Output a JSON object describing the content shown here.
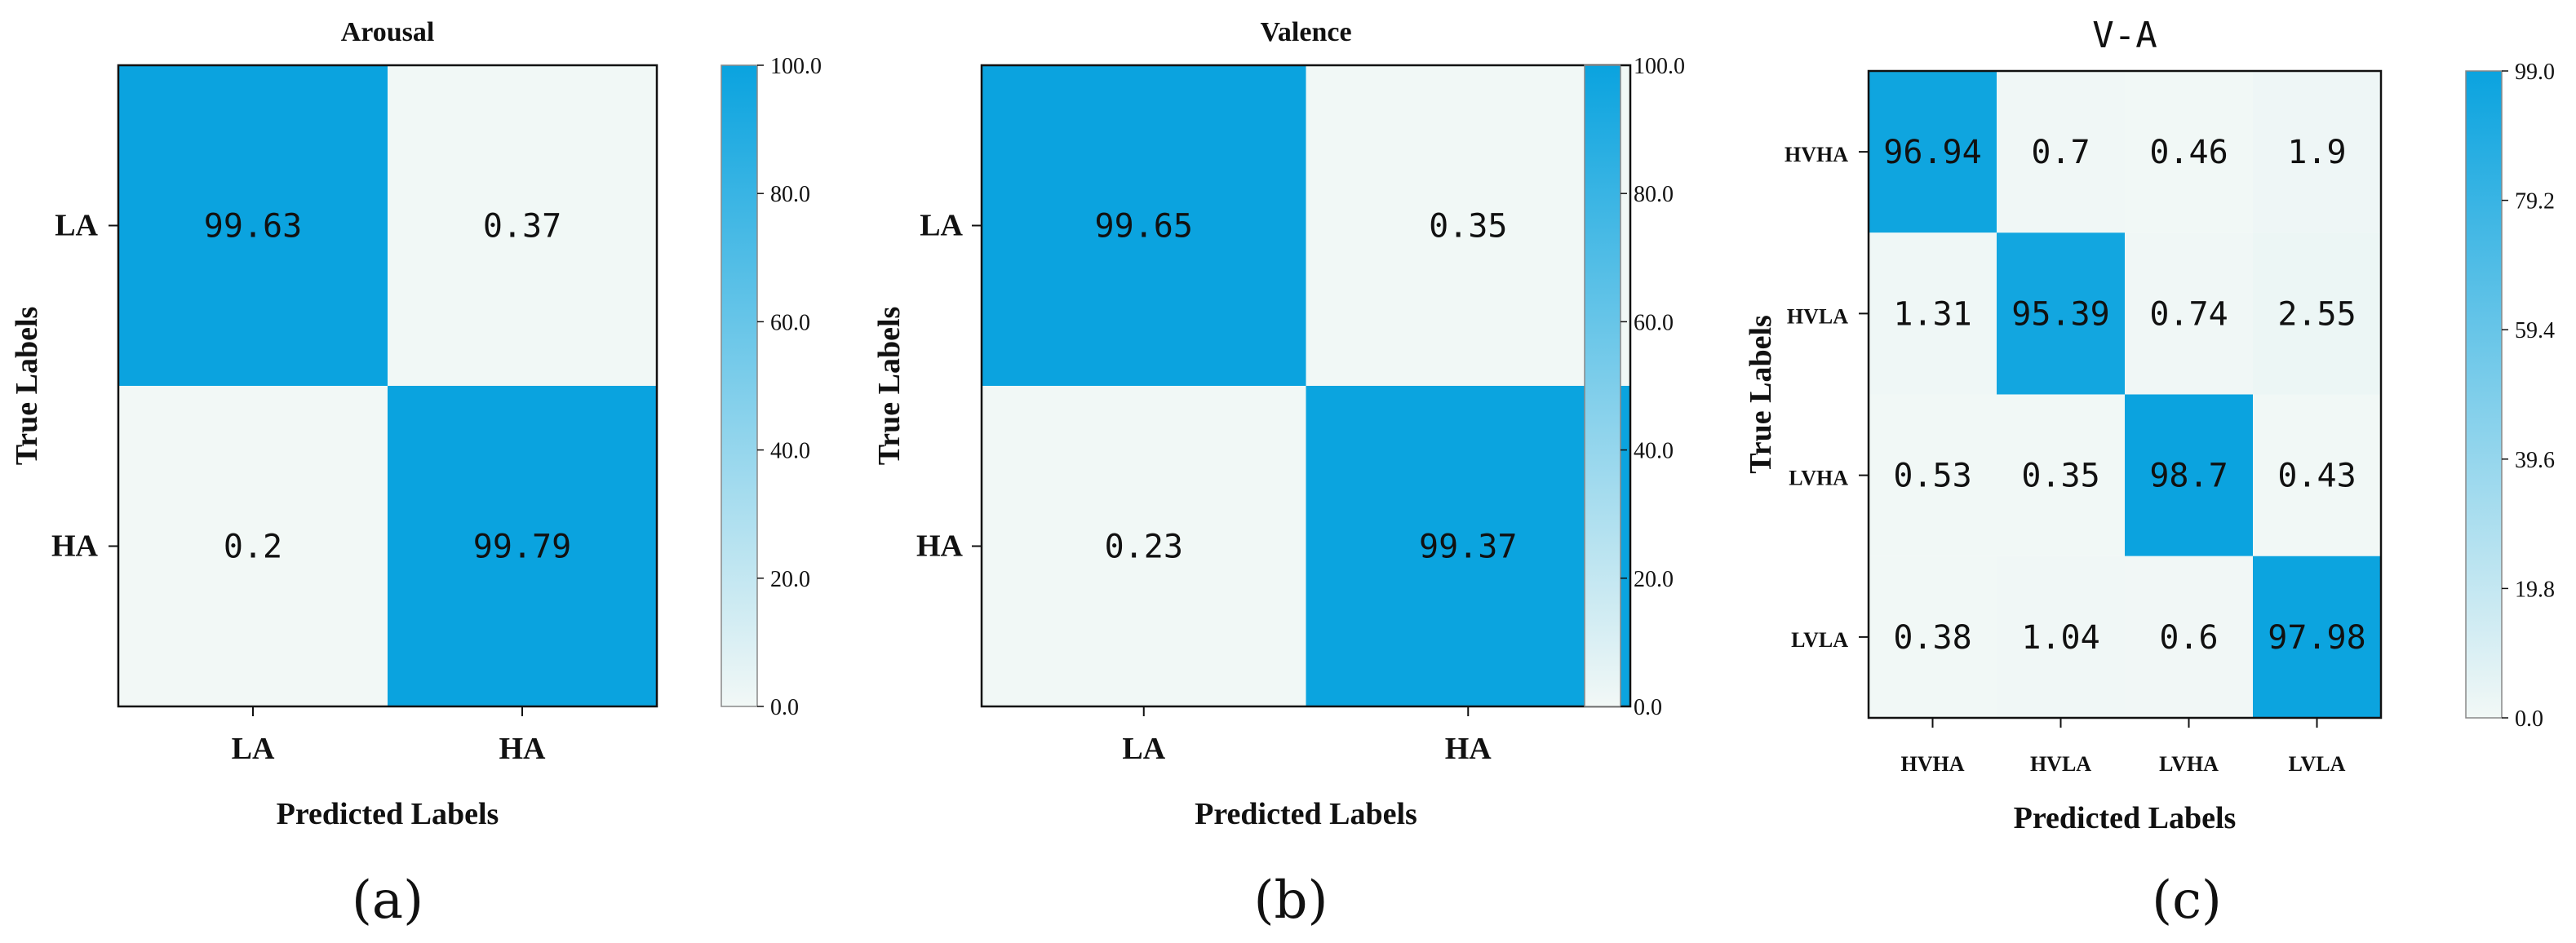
{
  "colors": {
    "max": "#0aa3df",
    "min": "#f2f8f6",
    "frame": "#111111"
  },
  "chart_data": [
    {
      "type": "heatmap",
      "title": "Arousal",
      "xlabel": "Predicted Labels",
      "ylabel": "True Labels",
      "x_categories": [
        "LA",
        "HA"
      ],
      "y_categories": [
        "LA",
        "HA"
      ],
      "values": [
        [
          99.63,
          0.37
        ],
        [
          0.2,
          99.79
        ]
      ],
      "colorbar": {
        "range": [
          0,
          100
        ],
        "ticks": [
          "0.0",
          "20.0",
          "40.0",
          "60.0",
          "80.0",
          "100.0"
        ]
      },
      "panel_label": "(a)"
    },
    {
      "type": "heatmap",
      "title": "Valence",
      "xlabel": "Predicted Labels",
      "ylabel": "True Labels",
      "x_categories": [
        "LA",
        "HA"
      ],
      "y_categories": [
        "LA",
        "HA"
      ],
      "values": [
        [
          99.65,
          0.35
        ],
        [
          0.23,
          99.37
        ]
      ],
      "colorbar": {
        "range": [
          0,
          100
        ],
        "ticks": [
          "0.0",
          "20.0",
          "40.0",
          "60.0",
          "80.0",
          "100.0"
        ]
      },
      "panel_label": "(b)"
    },
    {
      "type": "heatmap",
      "title": "V-A",
      "xlabel": "Predicted Labels",
      "ylabel": "True Labels",
      "x_categories": [
        "HVHA",
        "HVLA",
        "LVHA",
        "LVLA"
      ],
      "y_categories": [
        "HVHA",
        "HVLA",
        "LVHA",
        "LVLA"
      ],
      "values": [
        [
          96.94,
          0.7,
          0.46,
          1.9
        ],
        [
          1.31,
          95.39,
          0.74,
          2.55
        ],
        [
          0.53,
          0.35,
          98.7,
          0.43
        ],
        [
          0.38,
          1.04,
          0.6,
          97.98
        ]
      ],
      "colorbar": {
        "range": [
          0,
          99
        ],
        "ticks": [
          "0.0",
          "19.8",
          "39.6",
          "59.4",
          "79.2",
          "99.0"
        ]
      },
      "panel_label": "(c)"
    }
  ]
}
